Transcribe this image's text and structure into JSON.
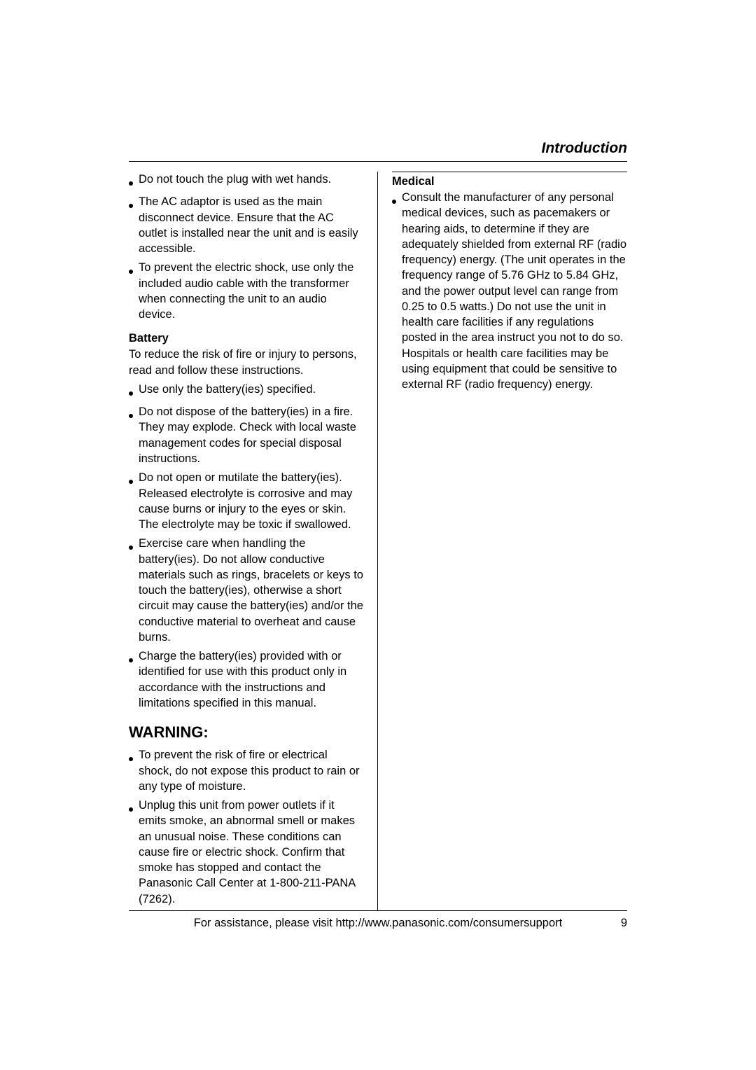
{
  "header": {
    "title": "Introduction"
  },
  "left": {
    "top_bullets": [
      "Do not touch the plug with wet hands.",
      "The AC adaptor is used as the main disconnect device. Ensure that the AC outlet is installed near the unit and is easily accessible.",
      "To prevent the electric shock, use only the included audio cable with the transformer when connecting the unit to an audio device."
    ],
    "battery": {
      "heading": "Battery",
      "intro": "To reduce the risk of fire or injury to persons, read and follow these instructions.",
      "bullets": [
        "Use only the battery(ies) specified.",
        "Do not dispose of the battery(ies) in a fire. They may explode. Check with local waste management codes for special disposal instructions.",
        "Do not open or mutilate the battery(ies). Released electrolyte is corrosive and may cause burns or injury to the eyes or skin. The electrolyte may be toxic if swallowed.",
        "Exercise care when handling the battery(ies). Do not allow conductive materials such as rings, bracelets or keys to touch the battery(ies), otherwise a short circuit may cause the battery(ies) and/or the conductive material to overheat and cause burns.",
        "Charge the battery(ies) provided with or identified for use with this product only in accordance with the instructions and limitations specified in this manual."
      ]
    },
    "warning": {
      "heading": "WARNING:",
      "bullets": [
        "To prevent the risk of fire or electrical shock, do not expose this product to rain or any type of moisture.",
        "Unplug this unit from power outlets if it emits smoke, an abnormal smell or makes an unusual noise. These conditions can cause fire or electric shock. Confirm that smoke has stopped and contact the Panasonic Call Center at 1-800-211-PANA (7262)."
      ]
    }
  },
  "right": {
    "medical": {
      "heading": "Medical",
      "bullets": [
        "Consult the manufacturer of any personal medical devices, such as pacemakers or hearing aids, to determine if they are adequately shielded from external RF (radio frequency) energy. (The unit operates in the frequency range of 5.76 GHz to 5.84 GHz, and the power output level can range from 0.25 to 0.5 watts.) Do not use the unit in health care facilities if any regulations posted in the area instruct you not to do so. Hospitals or health care facilities may be using equipment that could be sensitive to external RF (radio frequency) energy."
      ]
    }
  },
  "footer": {
    "text": "For assistance, please visit http://www.panasonic.com/consumersupport",
    "page": "9"
  }
}
